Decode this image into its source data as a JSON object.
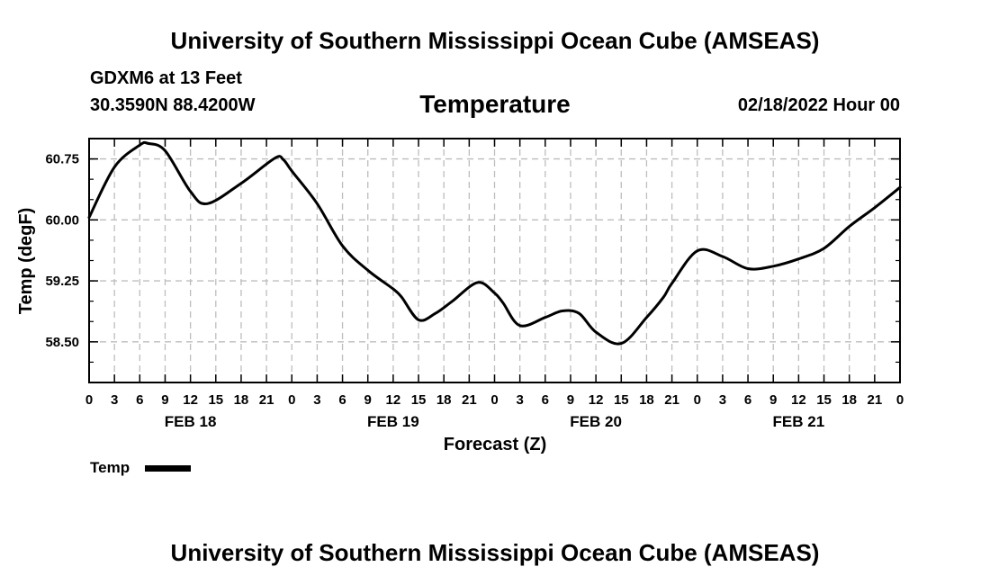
{
  "header": {
    "title": "University of Southern Mississippi Ocean Cube (AMSEAS)",
    "station": "GDXM6 at 13 Feet",
    "coords": "30.3590N  88.4200W",
    "variable": "Temperature",
    "datetime": "02/18/2022 Hour 00"
  },
  "footer": {
    "title": "University of Southern Mississippi Ocean Cube (AMSEAS)"
  },
  "chart_data": {
    "type": "line",
    "title": "Temperature",
    "xlabel": "Forecast (Z)",
    "ylabel": "Temp (degF)",
    "x_range_hours": [
      0,
      96
    ],
    "ylim": [
      58.0,
      61.0
    ],
    "yticks": [
      58.5,
      59.25,
      60.0,
      60.75
    ],
    "ytick_labels": [
      "58.50",
      "59.25",
      "60.00",
      "60.75"
    ],
    "xtick_labels": [
      "0",
      "3",
      "6",
      "9",
      "12",
      "15",
      "18",
      "21",
      "0",
      "3",
      "6",
      "9",
      "12",
      "15",
      "18",
      "21",
      "0",
      "3",
      "6",
      "9",
      "12",
      "15",
      "18",
      "21",
      "0",
      "3",
      "6",
      "9",
      "12",
      "15",
      "18",
      "21",
      "0"
    ],
    "date_labels": [
      {
        "hour": 12,
        "label": "FEB 18"
      },
      {
        "hour": 36,
        "label": "FEB 19"
      },
      {
        "hour": 60,
        "label": "FEB 20"
      },
      {
        "hour": 84,
        "label": "FEB 21"
      }
    ],
    "grid": true,
    "legend": [
      {
        "name": "Temp",
        "color": "#000000"
      }
    ],
    "series": [
      {
        "name": "Temp",
        "color": "#000000",
        "x": [
          0,
          3,
          6,
          7,
          9,
          12,
          14,
          18,
          22,
          23,
          24,
          27,
          30,
          33,
          36,
          37,
          39,
          41,
          43,
          46,
          48,
          49,
          51,
          54,
          56,
          58,
          60,
          63,
          66,
          68,
          69,
          72,
          75,
          78,
          81,
          84,
          87,
          90,
          93,
          96
        ],
        "y": [
          60.03,
          60.65,
          60.92,
          60.94,
          60.85,
          60.35,
          60.2,
          60.45,
          60.76,
          60.74,
          60.6,
          60.2,
          59.68,
          59.38,
          59.15,
          59.05,
          58.77,
          58.85,
          59.0,
          59.23,
          59.1,
          58.98,
          58.7,
          58.8,
          58.88,
          58.85,
          58.62,
          58.48,
          58.8,
          59.05,
          59.22,
          59.62,
          59.55,
          59.4,
          59.43,
          59.52,
          59.65,
          59.92,
          60.15,
          60.4
        ]
      }
    ]
  }
}
